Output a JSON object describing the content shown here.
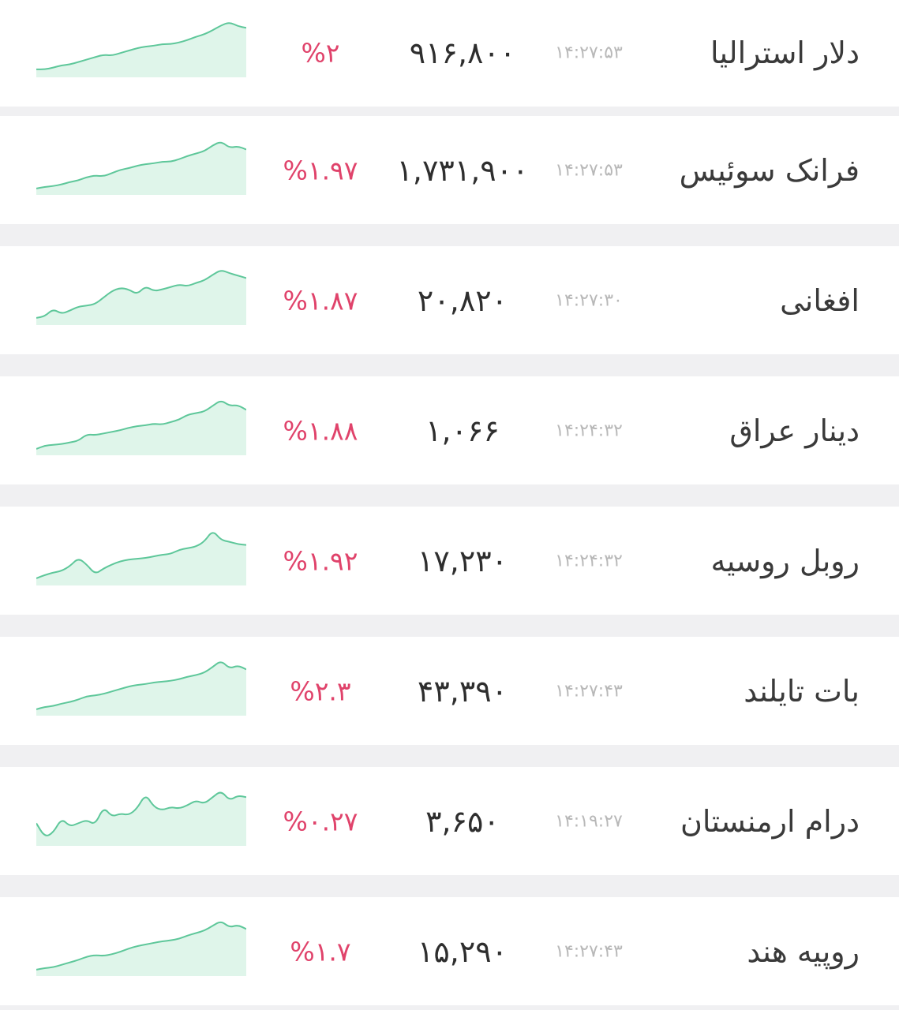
{
  "colors": {
    "negative": "#e0436b",
    "spark_line": "#5ec79a",
    "spark_fill": "#dff5ea"
  },
  "rows": [
    {
      "name": "دلار استرالیا",
      "time": "۱۴:۲۷:۵۳",
      "price": "۹۱۶,۸۰۰",
      "change": "%۲",
      "spark": [
        4,
        4,
        6,
        9,
        10,
        13,
        16,
        19,
        22,
        21,
        24,
        27,
        30,
        32,
        33,
        35,
        35,
        37,
        40,
        44,
        47,
        52,
        58,
        62,
        57,
        55
      ]
    },
    {
      "name": "فرانک سوئیس",
      "time": "۱۴:۲۷:۵۳",
      "price": "۱,۷۳۱,۹۰۰",
      "change": "%۱.۹۷",
      "spark": [
        2,
        4,
        5,
        7,
        10,
        12,
        16,
        18,
        17,
        21,
        25,
        27,
        30,
        32,
        33,
        35,
        35,
        38,
        42,
        45,
        48,
        55,
        60,
        52,
        54,
        50
      ]
    },
    {
      "name": "افغانی",
      "time": "۱۴:۲۷:۳۰",
      "price": "۲۰,۸۲۰",
      "change": "%۱.۸۷",
      "spark": [
        3,
        5,
        14,
        8,
        12,
        17,
        18,
        20,
        28,
        36,
        40,
        38,
        32,
        42,
        36,
        38,
        41,
        44,
        42,
        46,
        49,
        56,
        62,
        58,
        55,
        52
      ]
    },
    {
      "name": "دینار عراق",
      "time": "۱۴:۲۴:۳۲",
      "price": "۱,۰۶۶",
      "change": "%۱.۸۸",
      "spark": [
        2,
        6,
        7,
        8,
        10,
        12,
        20,
        19,
        21,
        23,
        25,
        28,
        30,
        31,
        33,
        32,
        35,
        38,
        44,
        46,
        48,
        55,
        62,
        55,
        56,
        50
      ]
    },
    {
      "name": "روبل روسیه",
      "time": "۱۴:۲۴:۳۲",
      "price": "۱۷,۲۳۰",
      "change": "%۱.۹۲",
      "spark": [
        3,
        7,
        10,
        12,
        18,
        28,
        20,
        8,
        15,
        20,
        24,
        26,
        27,
        28,
        30,
        32,
        33,
        38,
        40,
        42,
        48,
        62,
        50,
        48,
        45,
        44
      ]
    },
    {
      "name": "بات تایلند",
      "time": "۱۴:۲۷:۴۳",
      "price": "۴۳,۳۹۰",
      "change": "%۲.۳",
      "spark": [
        2,
        5,
        6,
        9,
        11,
        14,
        18,
        19,
        21,
        24,
        27,
        30,
        32,
        33,
        35,
        36,
        37,
        39,
        42,
        44,
        47,
        54,
        62,
        52,
        56,
        51
      ]
    },
    {
      "name": "درام ارمنستان",
      "time": "۱۴:۱۹:۲۷",
      "price": "۳,۶۵۰",
      "change": "%۰.۲۷",
      "spark": [
        22,
        5,
        10,
        28,
        18,
        22,
        26,
        20,
        42,
        30,
        34,
        32,
        40,
        58,
        42,
        38,
        42,
        40,
        44,
        50,
        46,
        54,
        62,
        50,
        56,
        54
      ]
    },
    {
      "name": "روپیه هند",
      "time": "۱۴:۲۷:۴۳",
      "price": "۱۵,۲۹۰",
      "change": "%۱.۷",
      "spark": [
        2,
        4,
        5,
        8,
        11,
        14,
        18,
        20,
        19,
        21,
        24,
        28,
        31,
        33,
        35,
        37,
        38,
        40,
        44,
        47,
        50,
        56,
        62,
        54,
        57,
        52
      ]
    }
  ]
}
